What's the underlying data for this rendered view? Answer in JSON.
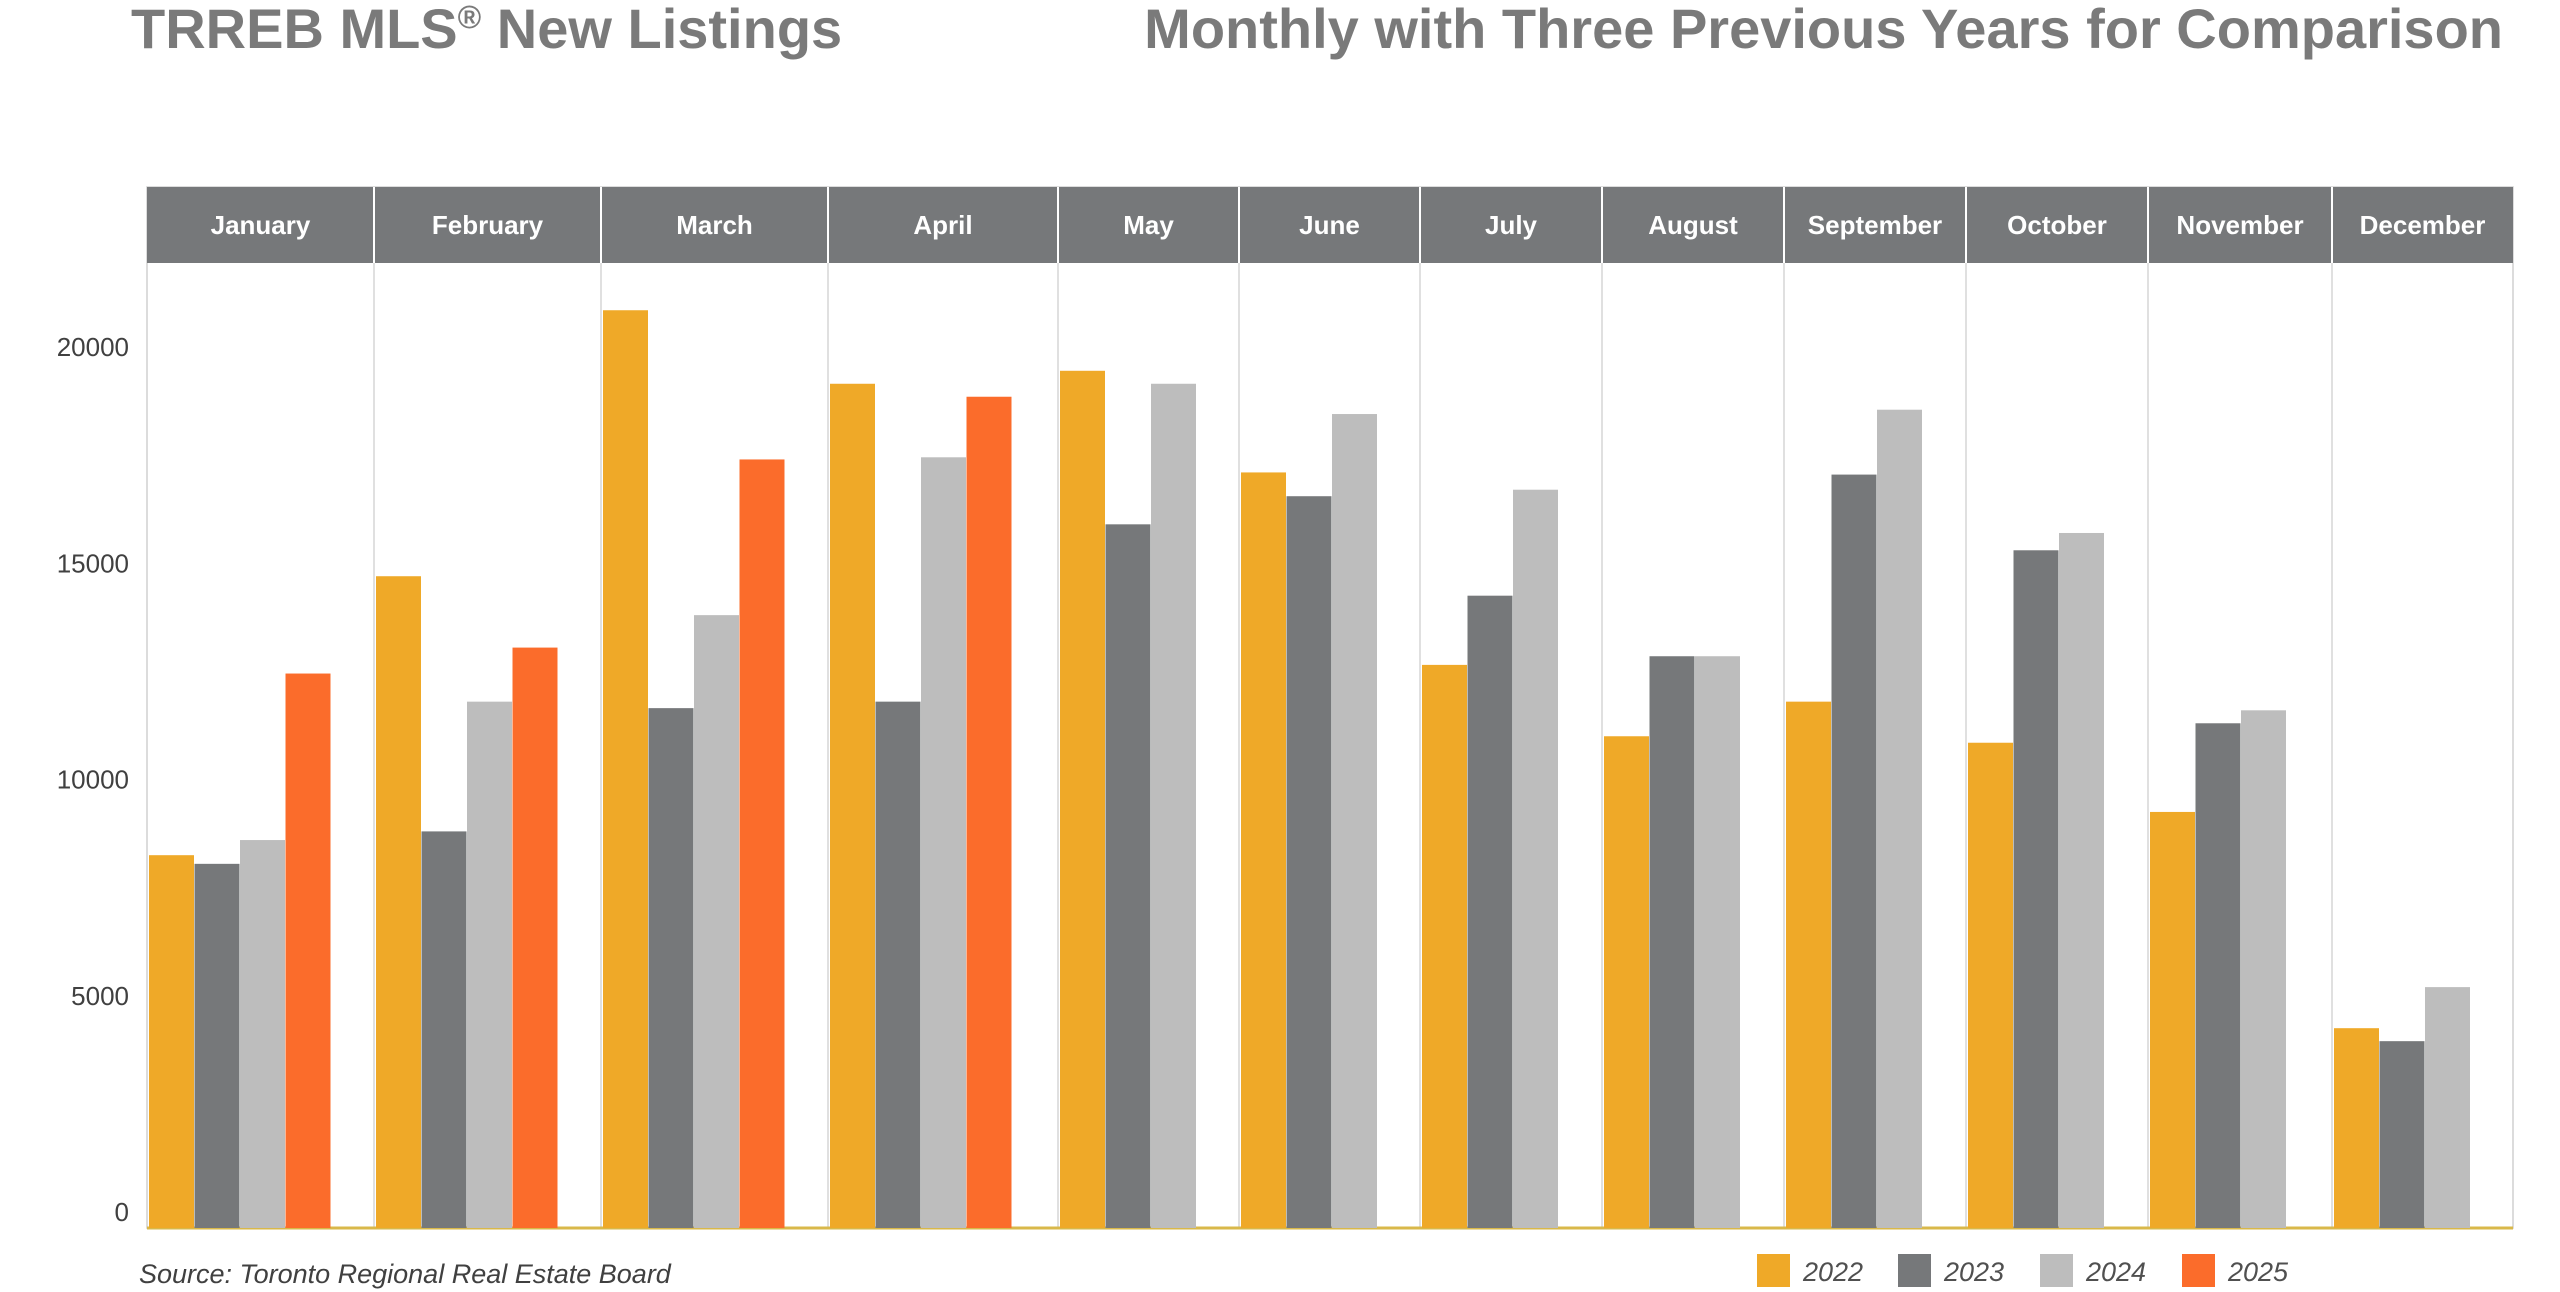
{
  "title_left": "TRREB MLS",
  "title_left_mark": "®",
  "title_left_rest": " New Listings",
  "title_right": "Monthly with Three Previous Years for Comparison",
  "source": "Source: Toronto Regional Real Estate Board",
  "colors": {
    "2022": "#efa928",
    "2023": "#76787a",
    "2024": "#bdbdbd",
    "2025": "#fb6c2b",
    "header": "#76787a",
    "baseline": "#d9b84a"
  },
  "chart_data": {
    "type": "bar",
    "title": "TRREB MLS® New Listings",
    "subtitle": "Monthly with Three Previous Years for Comparison",
    "xlabel": "",
    "ylabel": "",
    "ylim": [
      0,
      22000
    ],
    "yticks": [
      0,
      5000,
      10000,
      15000,
      20000
    ],
    "ytick_labels": [
      "0",
      "5000",
      "10000",
      "15000",
      "20000"
    ],
    "grid": false,
    "legend_position": "bottom-right",
    "categories": [
      "January",
      "February",
      "March",
      "April",
      "May",
      "June",
      "July",
      "August",
      "September",
      "October",
      "November",
      "December"
    ],
    "series": [
      {
        "name": "2022",
        "values": [
          8250,
          14700,
          20850,
          19150,
          19450,
          17100,
          12650,
          11000,
          11800,
          10850,
          9250,
          4250
        ]
      },
      {
        "name": "2023",
        "values": [
          8050,
          8800,
          11650,
          11800,
          15900,
          16550,
          14250,
          12850,
          17050,
          15300,
          11300,
          3950
        ]
      },
      {
        "name": "2024",
        "values": [
          8600,
          11800,
          13800,
          17450,
          19150,
          18450,
          16700,
          12850,
          18550,
          15700,
          11600,
          5200
        ]
      },
      {
        "name": "2025",
        "values": [
          12450,
          13050,
          17400,
          18850,
          null,
          null,
          null,
          null,
          null,
          null,
          null,
          null
        ]
      }
    ]
  }
}
